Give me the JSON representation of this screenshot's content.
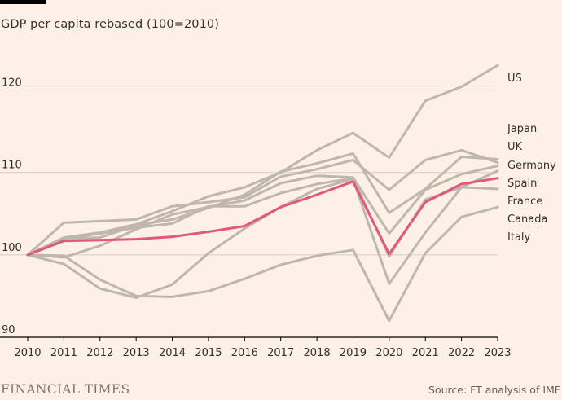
{
  "header": {
    "subtitle": "GDP per capita rebased (100=2010)"
  },
  "footer": {
    "brand": "FINANCIAL TIMES",
    "source": "Source: FT analysis of IMF"
  },
  "colors": {
    "background": "#fdf1e5",
    "highlight": "#e05880",
    "others": "#bfb6ad",
    "gridline": "#d7cdc3"
  },
  "chart_data": {
    "type": "line",
    "title": "GDP per capita rebased (100=2010)",
    "xlabel": "",
    "ylabel": "",
    "x": [
      2010,
      2011,
      2012,
      2013,
      2014,
      2015,
      2016,
      2017,
      2018,
      2019,
      2020,
      2021,
      2022,
      2023
    ],
    "ylim": [
      90,
      125
    ],
    "yticks": [
      90,
      100,
      110,
      120
    ],
    "grid": true,
    "highlighted_series": "UK",
    "label_order": [
      "US",
      "Japan",
      "UK",
      "Germany",
      "Spain",
      "France",
      "Canada",
      "Italy"
    ],
    "series": [
      {
        "name": "US",
        "values": [
          100,
          102.1,
          102.7,
          103.7,
          105.3,
          107.1,
          108.2,
          110.0,
          112.7,
          114.8,
          111.8,
          118.7,
          120.4,
          123.0
        ]
      },
      {
        "name": "Japan",
        "values": [
          100,
          99.7,
          101.1,
          103.1,
          104.9,
          105.8,
          106.6,
          108.7,
          109.6,
          109.4,
          102.6,
          107.9,
          109.8,
          110.8
        ]
      },
      {
        "name": "UK",
        "values": [
          100,
          101.7,
          101.8,
          101.9,
          102.2,
          102.8,
          103.5,
          105.8,
          107.3,
          108.9,
          100.1,
          106.4,
          108.6,
          109.3
        ]
      },
      {
        "name": "Germany",
        "values": [
          100,
          103.9,
          104.1,
          104.3,
          105.9,
          106.4,
          107.0,
          109.5,
          110.4,
          111.5,
          107.9,
          111.5,
          112.7,
          111.2
        ]
      },
      {
        "name": "Spain",
        "values": [
          100,
          98.9,
          95.9,
          94.8,
          96.4,
          100.2,
          103.2,
          105.8,
          108.0,
          109.2,
          96.5,
          102.7,
          108.2,
          110.2
        ]
      },
      {
        "name": "France",
        "values": [
          100,
          101.9,
          102.6,
          103.3,
          103.8,
          105.9,
          105.9,
          107.5,
          108.6,
          109.3,
          99.8,
          106.7,
          108.2,
          108.0
        ]
      },
      {
        "name": "Canada",
        "values": [
          100,
          101.9,
          102.1,
          103.6,
          104.3,
          105.7,
          107.3,
          110.1,
          111.1,
          112.3,
          105.1,
          108.0,
          111.9,
          111.6
        ]
      },
      {
        "name": "Italy",
        "values": [
          100,
          99.9,
          97.0,
          95.0,
          94.9,
          95.6,
          97.1,
          98.8,
          99.9,
          100.6,
          92.0,
          100.2,
          104.6,
          105.8
        ]
      }
    ]
  }
}
